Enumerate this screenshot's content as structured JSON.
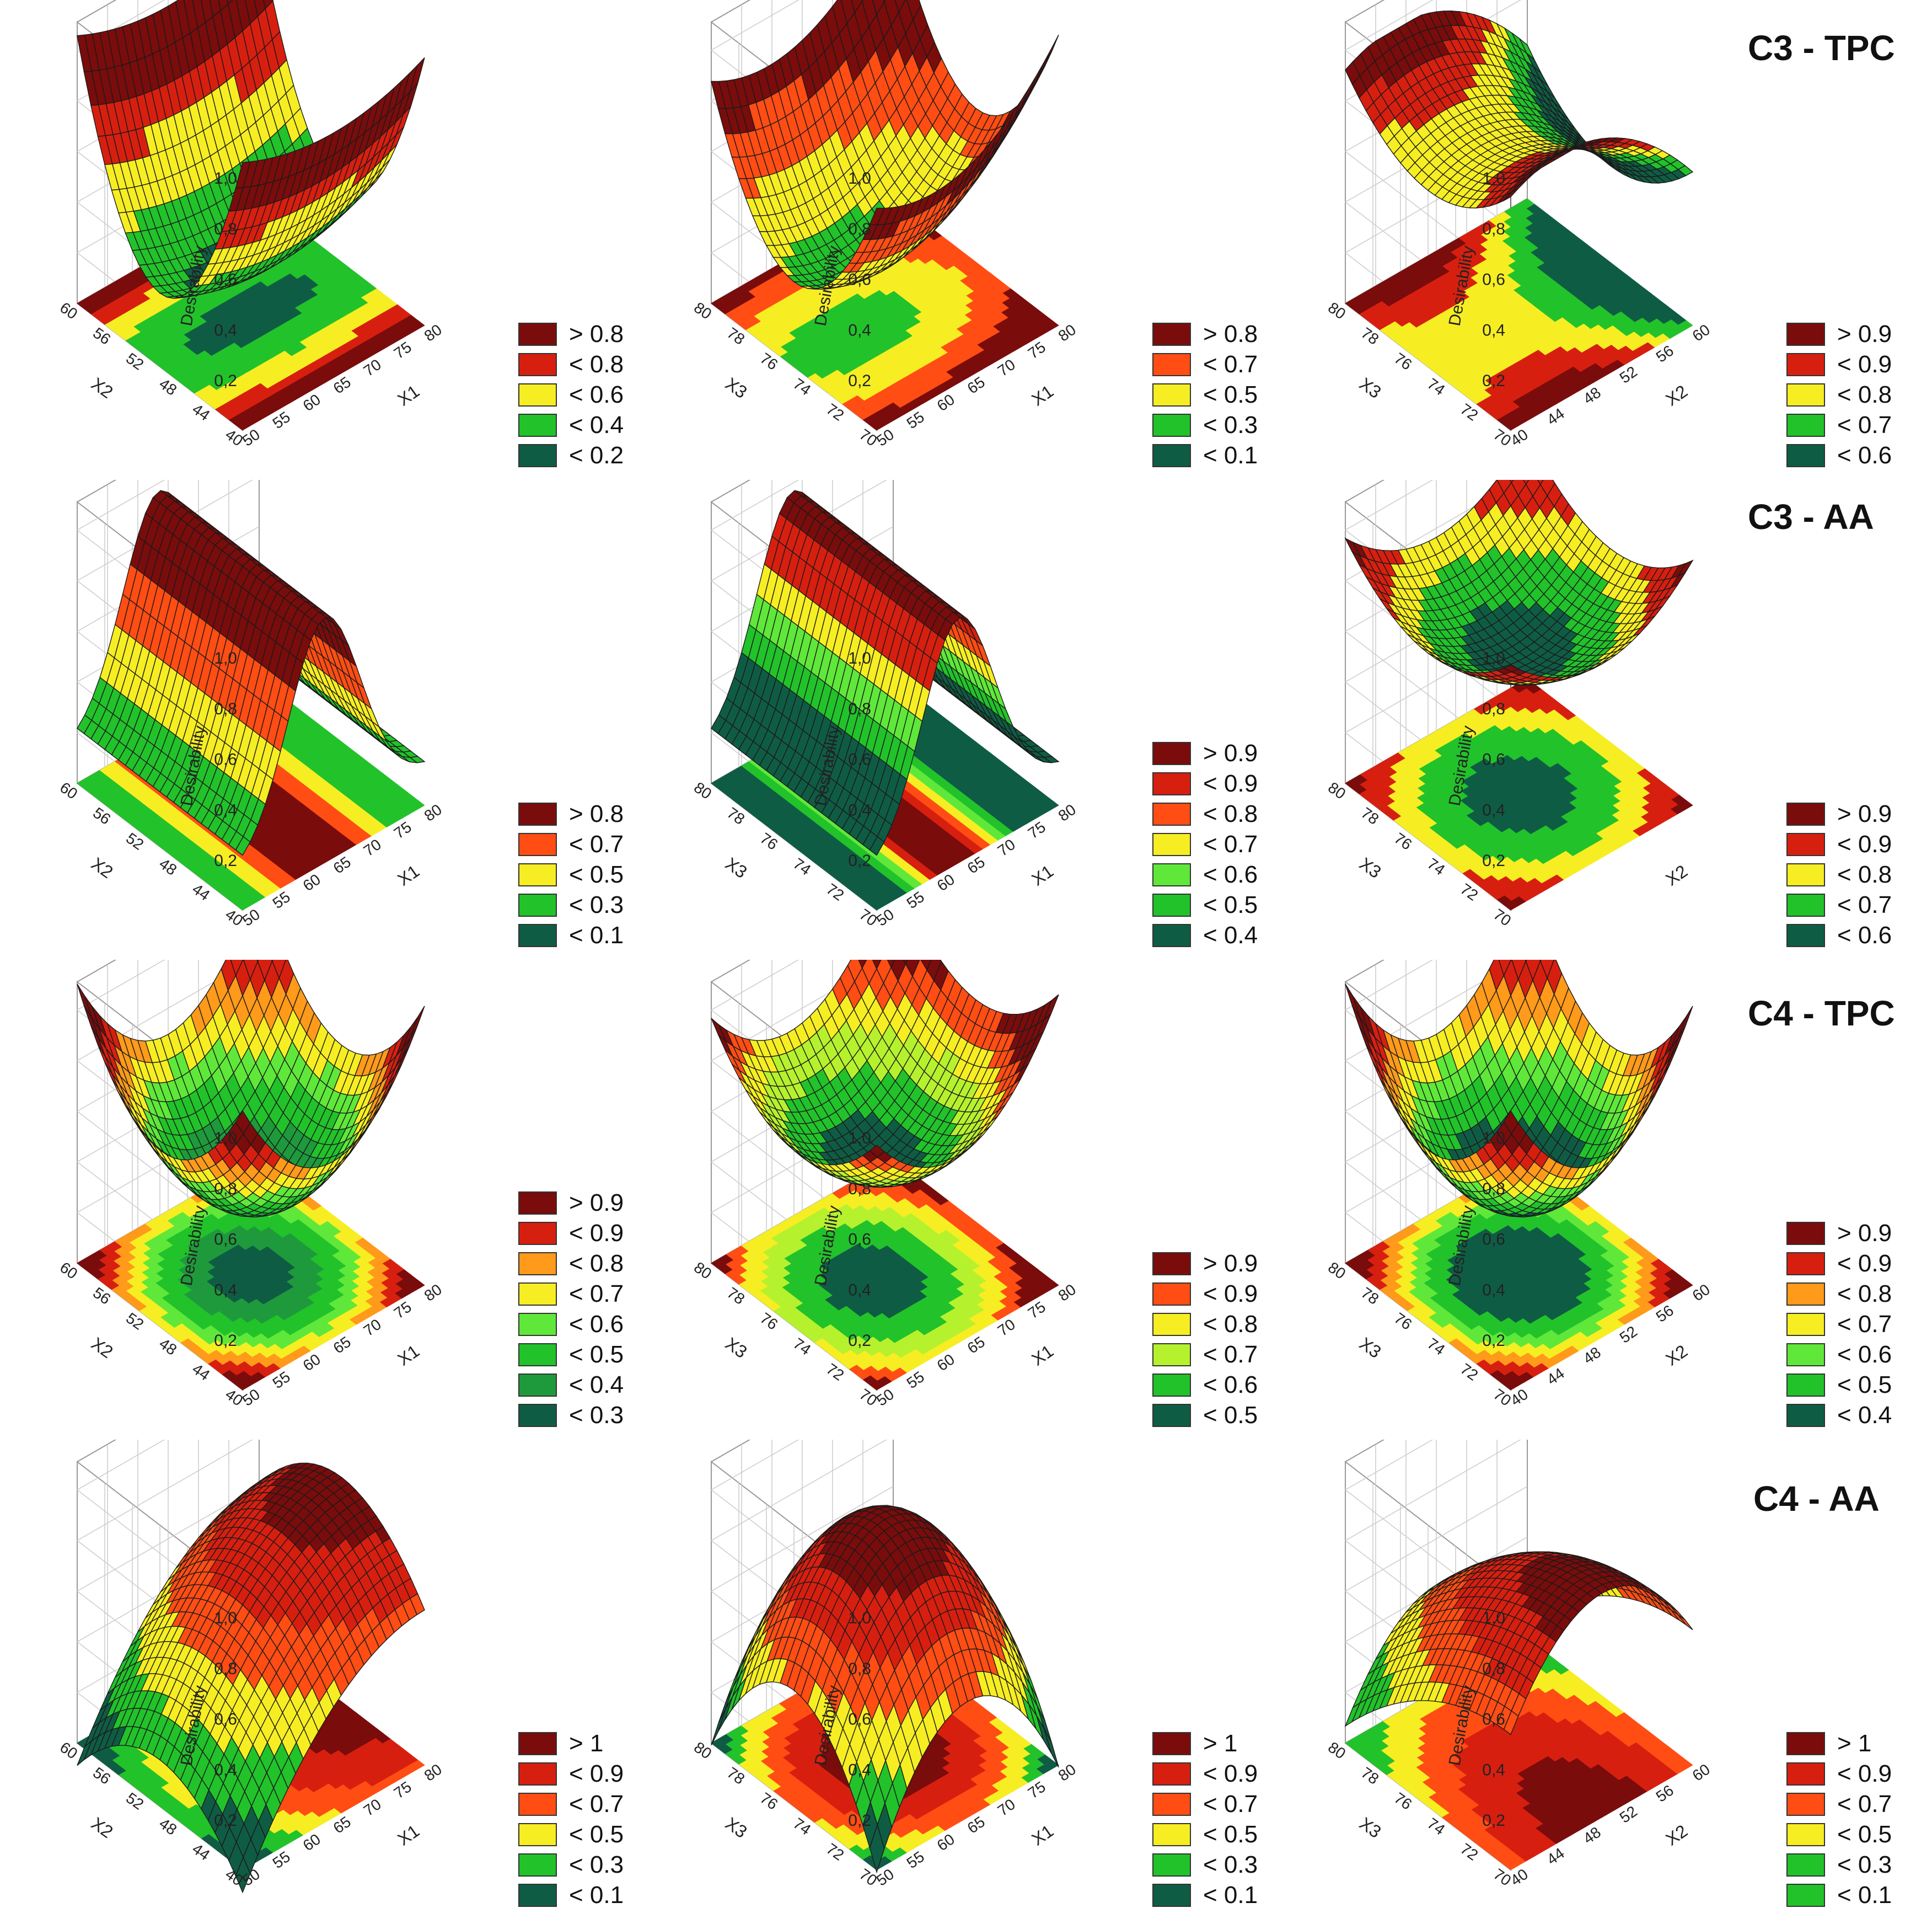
{
  "row_titles": [
    "C3 - TPC",
    "C3 - AA",
    "C4 - TPC",
    "C4 - AA"
  ],
  "colors": {
    "dark_red": "#7a0c0c",
    "red": "#d71f10",
    "orange_red": "#ff4d14",
    "orange": "#ff9a1a",
    "yellow": "#f6ee22",
    "yellow_green": "#b6f12e",
    "light_green": "#5fe83a",
    "green": "#22c22b",
    "mid_green": "#1e9a3c",
    "dark_green": "#0f5c44"
  },
  "chart_data": [
    {
      "type": "surface3d",
      "panel": "C3 - TPC (X1, X2)",
      "zlabel": "Desirability",
      "xlabel": "X1",
      "ylabel": "X2",
      "x_ticks": [
        "50",
        "55",
        "60",
        "65",
        "70",
        "75",
        "80"
      ],
      "y_ticks": [
        "40",
        "44",
        "48",
        "52",
        "56",
        "60"
      ],
      "z_ticks": [
        "0,2",
        "0,4",
        "0,6",
        "0,8",
        "1,0"
      ],
      "zlim": [
        0,
        1
      ],
      "grid": true,
      "shape": "valley along X2, minimum near center",
      "legend": [
        {
          "label": "> 0.8",
          "color": "#7a0c0c"
        },
        {
          "label": "< 0.8",
          "color": "#d71f10"
        },
        {
          "label": "< 0.6",
          "color": "#f6ee22"
        },
        {
          "label": "< 0.4",
          "color": "#22c22b"
        },
        {
          "label": "< 0.2",
          "color": "#0f5c44"
        }
      ]
    },
    {
      "type": "surface3d",
      "panel": "C3 - TPC (X1, X3)",
      "zlabel": "Desirability",
      "xlabel": "X1",
      "ylabel": "X3",
      "x_ticks": [
        "50",
        "55",
        "60",
        "65",
        "70",
        "75",
        "80"
      ],
      "y_ticks": [
        "70",
        "72",
        "74",
        "76",
        "78",
        "80"
      ],
      "z_ticks": [
        "0,2",
        "0,4",
        "0,6",
        "0,8",
        "1,0"
      ],
      "zlim": [
        0,
        1
      ],
      "grid": true,
      "shape": "valley, high at X1 max",
      "legend": [
        {
          "label": "> 0.8",
          "color": "#7a0c0c"
        },
        {
          "label": "< 0.7",
          "color": "#ff4d14"
        },
        {
          "label": "< 0.5",
          "color": "#f6ee22"
        },
        {
          "label": "< 0.3",
          "color": "#22c22b"
        },
        {
          "label": "< 0.1",
          "color": "#0f5c44"
        }
      ]
    },
    {
      "type": "surface3d",
      "panel": "C3 - TPC (X2, X3)",
      "zlabel": "Desirability",
      "xlabel": "X2",
      "ylabel": "X3",
      "x_ticks": [
        "40",
        "44",
        "48",
        "52",
        "56",
        "60"
      ],
      "y_ticks": [
        "70",
        "72",
        "74",
        "76",
        "78",
        "80"
      ],
      "z_ticks": [
        "0,2",
        "0,4",
        "0,6",
        "0,8",
        "1,0"
      ],
      "zlim": [
        0,
        1
      ],
      "grid": true,
      "shape": "saddle, high at X3 max",
      "legend": [
        {
          "label": "> 0.9",
          "color": "#7a0c0c"
        },
        {
          "label": "< 0.9",
          "color": "#d71f10"
        },
        {
          "label": "< 0.8",
          "color": "#f6ee22"
        },
        {
          "label": "< 0.7",
          "color": "#22c22b"
        },
        {
          "label": "< 0.6",
          "color": "#0f5c44"
        }
      ]
    },
    {
      "type": "surface3d",
      "panel": "C3 - AA (X1, X2)",
      "zlabel": "Desirability",
      "xlabel": "X1",
      "ylabel": "X2",
      "x_ticks": [
        "50",
        "55",
        "60",
        "65",
        "70",
        "75",
        "80"
      ],
      "y_ticks": [
        "40",
        "44",
        "48",
        "52",
        "56",
        "60"
      ],
      "z_ticks": [
        "0,2",
        "0,4",
        "0,6",
        "0,8",
        "1,0"
      ],
      "zlim": [
        0,
        1
      ],
      "grid": true,
      "shape": "ridge across X1",
      "legend": [
        {
          "label": "> 0.8",
          "color": "#7a0c0c"
        },
        {
          "label": "< 0.7",
          "color": "#ff4d14"
        },
        {
          "label": "< 0.5",
          "color": "#f6ee22"
        },
        {
          "label": "< 0.3",
          "color": "#22c22b"
        },
        {
          "label": "< 0.1",
          "color": "#0f5c44"
        }
      ]
    },
    {
      "type": "surface3d",
      "panel": "C3 - AA (X1, X3)",
      "zlabel": "Desirability",
      "xlabel": "X1",
      "ylabel": "X3",
      "x_ticks": [
        "50",
        "55",
        "60",
        "65",
        "70",
        "75",
        "80"
      ],
      "y_ticks": [
        "70",
        "72",
        "74",
        "76",
        "78",
        "80"
      ],
      "z_ticks": [
        "0,2",
        "0,4",
        "0,6",
        "0,8",
        "1,0"
      ],
      "zlim": [
        0,
        1
      ],
      "grid": true,
      "shape": "ridge across X1",
      "legend": [
        {
          "label": "> 0.9",
          "color": "#7a0c0c"
        },
        {
          "label": "< 0.9",
          "color": "#d71f10"
        },
        {
          "label": "< 0.8",
          "color": "#ff4d14"
        },
        {
          "label": "< 0.7",
          "color": "#f6ee22"
        },
        {
          "label": "< 0.6",
          "color": "#5fe83a"
        },
        {
          "label": "< 0.5",
          "color": "#22c22b"
        },
        {
          "label": "< 0.4",
          "color": "#0f5c44"
        }
      ]
    },
    {
      "type": "surface3d",
      "panel": "C3 - AA (X2, X3)",
      "zlabel": "Desirability",
      "xlabel": "X2",
      "ylabel": "X3",
      "x_ticks": [],
      "y_ticks": [
        "70",
        "72",
        "74",
        "76",
        "78",
        "80"
      ],
      "z_ticks": [
        "0,2",
        "0,4",
        "0,6",
        "0,8",
        "1,0"
      ],
      "zlim": [
        0,
        1
      ],
      "grid": true,
      "shape": "shallow bowl",
      "legend": [
        {
          "label": "> 0.9",
          "color": "#7a0c0c"
        },
        {
          "label": "< 0.9",
          "color": "#d71f10"
        },
        {
          "label": "< 0.8",
          "color": "#f6ee22"
        },
        {
          "label": "< 0.7",
          "color": "#22c22b"
        },
        {
          "label": "< 0.6",
          "color": "#0f5c44"
        }
      ]
    },
    {
      "type": "surface3d",
      "panel": "C4 - TPC (X1, X2)",
      "zlabel": "Desirability",
      "xlabel": "X1",
      "ylabel": "X2",
      "x_ticks": [
        "50",
        "55",
        "60",
        "65",
        "70",
        "75",
        "80"
      ],
      "y_ticks": [
        "40",
        "44",
        "48",
        "52",
        "56",
        "60"
      ],
      "z_ticks": [
        "0,2",
        "0,4",
        "0,6",
        "0,8",
        "1,0"
      ],
      "zlim": [
        0,
        1
      ],
      "grid": true,
      "shape": "bowl, minimum at center",
      "legend": [
        {
          "label": "> 0.9",
          "color": "#7a0c0c"
        },
        {
          "label": "< 0.9",
          "color": "#d71f10"
        },
        {
          "label": "< 0.8",
          "color": "#ff9a1a"
        },
        {
          "label": "< 0.7",
          "color": "#f6ee22"
        },
        {
          "label": "< 0.6",
          "color": "#5fe83a"
        },
        {
          "label": "< 0.5",
          "color": "#22c22b"
        },
        {
          "label": "< 0.4",
          "color": "#1e9a3c"
        },
        {
          "label": "< 0.3",
          "color": "#0f5c44"
        }
      ]
    },
    {
      "type": "surface3d",
      "panel": "C4 - TPC (X1, X3)",
      "zlabel": "Desirability",
      "xlabel": "X1",
      "ylabel": "X3",
      "x_ticks": [
        "50",
        "55",
        "60",
        "65",
        "70",
        "75",
        "80"
      ],
      "y_ticks": [
        "70",
        "72",
        "74",
        "76",
        "78",
        "80"
      ],
      "z_ticks": [
        "0,2",
        "0,4",
        "0,6",
        "0,8",
        "1,0"
      ],
      "zlim": [
        0,
        1
      ],
      "grid": true,
      "shape": "bowl, high at X1 max",
      "legend": [
        {
          "label": "> 0.9",
          "color": "#7a0c0c"
        },
        {
          "label": "< 0.9",
          "color": "#ff4d14"
        },
        {
          "label": "< 0.8",
          "color": "#f6ee22"
        },
        {
          "label": "< 0.7",
          "color": "#b6f12e"
        },
        {
          "label": "< 0.6",
          "color": "#22c22b"
        },
        {
          "label": "< 0.5",
          "color": "#0f5c44"
        }
      ]
    },
    {
      "type": "surface3d",
      "panel": "C4 - TPC (X2, X3)",
      "zlabel": "Desirability",
      "xlabel": "X2",
      "ylabel": "X3",
      "x_ticks": [
        "40",
        "44",
        "48",
        "52",
        "56",
        "60"
      ],
      "y_ticks": [
        "70",
        "72",
        "74",
        "76",
        "78",
        "80"
      ],
      "z_ticks": [
        "0,2",
        "0,4",
        "0,6",
        "0,8",
        "1,0"
      ],
      "zlim": [
        0,
        1
      ],
      "grid": true,
      "shape": "bowl, minimum at center",
      "legend": [
        {
          "label": "> 0.9",
          "color": "#7a0c0c"
        },
        {
          "label": "< 0.9",
          "color": "#d71f10"
        },
        {
          "label": "< 0.8",
          "color": "#ff9a1a"
        },
        {
          "label": "< 0.7",
          "color": "#f6ee22"
        },
        {
          "label": "< 0.6",
          "color": "#5fe83a"
        },
        {
          "label": "< 0.5",
          "color": "#22c22b"
        },
        {
          "label": "< 0.4",
          "color": "#0f5c44"
        }
      ]
    },
    {
      "type": "surface3d",
      "panel": "C4 - AA (X1, X2)",
      "zlabel": "Desirability",
      "xlabel": "X1",
      "ylabel": "X2",
      "x_ticks": [
        "50",
        "55",
        "60",
        "65",
        "70",
        "75",
        "80"
      ],
      "y_ticks": [
        "40",
        "44",
        "48",
        "52",
        "56",
        "60"
      ],
      "z_ticks": [
        "0,2",
        "0,4",
        "0,6",
        "0,8",
        "1,0"
      ],
      "zlim": [
        0,
        1.1
      ],
      "grid": true,
      "shape": "dome, maximum toward X1 max",
      "legend": [
        {
          "label": "> 1",
          "color": "#7a0c0c"
        },
        {
          "label": "< 0.9",
          "color": "#d71f10"
        },
        {
          "label": "< 0.7",
          "color": "#ff4d14"
        },
        {
          "label": "< 0.5",
          "color": "#f6ee22"
        },
        {
          "label": "< 0.3",
          "color": "#22c22b"
        },
        {
          "label": "< 0.1",
          "color": "#0f5c44"
        }
      ]
    },
    {
      "type": "surface3d",
      "panel": "C4 - AA (X1, X3)",
      "zlabel": "Desirability",
      "xlabel": "X1",
      "ylabel": "X3",
      "x_ticks": [
        "50",
        "55",
        "60",
        "65",
        "70",
        "75",
        "80"
      ],
      "y_ticks": [
        "70",
        "72",
        "74",
        "76",
        "78",
        "80"
      ],
      "z_ticks": [
        "0,2",
        "0,4",
        "0,6",
        "0,8",
        "1,0"
      ],
      "zlim": [
        0,
        1.1
      ],
      "grid": true,
      "shape": "dome",
      "legend": [
        {
          "label": "> 1",
          "color": "#7a0c0c"
        },
        {
          "label": "< 0.9",
          "color": "#d71f10"
        },
        {
          "label": "< 0.7",
          "color": "#ff4d14"
        },
        {
          "label": "< 0.5",
          "color": "#f6ee22"
        },
        {
          "label": "< 0.3",
          "color": "#22c22b"
        },
        {
          "label": "< 0.1",
          "color": "#0f5c44"
        }
      ]
    },
    {
      "type": "surface3d",
      "panel": "C4 - AA (X2, X3)",
      "zlabel": "Desirability",
      "xlabel": "X2",
      "ylabel": "X3",
      "x_ticks": [
        "40",
        "44",
        "48",
        "52",
        "56",
        "60"
      ],
      "y_ticks": [
        "70",
        "72",
        "74",
        "76",
        "78",
        "80"
      ],
      "z_ticks": [
        "0,2",
        "0,4",
        "0,6",
        "0,8",
        "1,0"
      ],
      "zlim": [
        0,
        1.1
      ],
      "grid": true,
      "shape": "dome, maximum toward X3 max",
      "legend": [
        {
          "label": "> 1",
          "color": "#7a0c0c"
        },
        {
          "label": "< 0.9",
          "color": "#d71f10"
        },
        {
          "label": "< 0.7",
          "color": "#ff4d14"
        },
        {
          "label": "< 0.5",
          "color": "#f6ee22"
        },
        {
          "label": "< 0.3",
          "color": "#22c22b"
        },
        {
          "label": "< 0.1",
          "color": "#22c22b"
        }
      ]
    }
  ]
}
